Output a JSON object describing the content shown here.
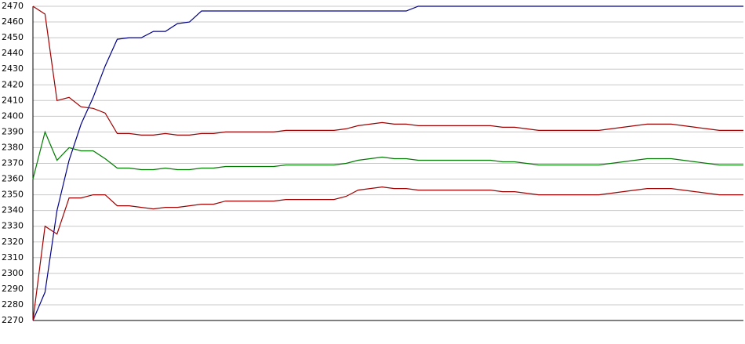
{
  "chart_data": {
    "type": "line",
    "categories": [
      null,
      null,
      null,
      null,
      null,
      null,
      null,
      null,
      null,
      null,
      null,
      null,
      null,
      null,
      null,
      null,
      null,
      null,
      null,
      null,
      null,
      null,
      null,
      null,
      null,
      null,
      null,
      null,
      null,
      null,
      null,
      null,
      null,
      null,
      null,
      null,
      null,
      null,
      null,
      null,
      null,
      null,
      null,
      null,
      null,
      null,
      null,
      null,
      null,
      null,
      null,
      null,
      null,
      null,
      null,
      null,
      null,
      null,
      null,
      null
    ],
    "series": [
      {
        "color": "#00008b",
        "values": [
          2270,
          2288,
          2340,
          2372,
          2395,
          2412,
          2432,
          2449,
          2450,
          2450,
          2454,
          2454,
          2459,
          2460,
          2467,
          2467,
          2467,
          2467,
          2467,
          2467,
          2467,
          2467,
          2467,
          2467,
          2467,
          2467,
          2467,
          2467,
          2467,
          2467,
          2467,
          2467,
          2470,
          2470,
          2470,
          2470,
          2470,
          2470,
          2470,
          2470,
          2470,
          2470,
          2470,
          2470,
          2470,
          2470,
          2470,
          2470,
          2470,
          2470,
          2470,
          2470,
          2470,
          2470,
          2470,
          2470,
          2470,
          2470,
          2470,
          2470
        ]
      },
      {
        "color": "#a00000",
        "values": [
          2470,
          2465,
          2410,
          2412,
          2406,
          2405,
          2402,
          2389,
          2389,
          2388,
          2388,
          2389,
          2388,
          2388,
          2389,
          2389,
          2390,
          2390,
          2390,
          2390,
          2390,
          2391,
          2391,
          2391,
          2391,
          2391,
          2392,
          2394,
          2395,
          2396,
          2395,
          2395,
          2394,
          2394,
          2394,
          2394,
          2394,
          2394,
          2394,
          2393,
          2393,
          2392,
          2391,
          2391,
          2391,
          2391,
          2391,
          2391,
          2392,
          2393,
          2394,
          2395,
          2395,
          2395,
          2394,
          2393,
          2392,
          2391,
          2391,
          2391
        ]
      },
      {
        "color": "#007a00",
        "values": [
          2360,
          2390,
          2372,
          2380,
          2378,
          2378,
          2373,
          2367,
          2367,
          2366,
          2366,
          2367,
          2366,
          2366,
          2367,
          2367,
          2368,
          2368,
          2368,
          2368,
          2368,
          2369,
          2369,
          2369,
          2369,
          2369,
          2370,
          2372,
          2373,
          2374,
          2373,
          2373,
          2372,
          2372,
          2372,
          2372,
          2372,
          2372,
          2372,
          2371,
          2371,
          2370,
          2369,
          2369,
          2369,
          2369,
          2369,
          2369,
          2370,
          2371,
          2372,
          2373,
          2373,
          2373,
          2372,
          2371,
          2370,
          2369,
          2369,
          2369
        ]
      },
      {
        "color": "#a00000",
        "values": [
          2270,
          2330,
          2325,
          2348,
          2348,
          2350,
          2350,
          2343,
          2343,
          2342,
          2341,
          2342,
          2342,
          2343,
          2344,
          2344,
          2346,
          2346,
          2346,
          2346,
          2346,
          2347,
          2347,
          2347,
          2347,
          2347,
          2349,
          2353,
          2354,
          2355,
          2354,
          2354,
          2353,
          2353,
          2353,
          2353,
          2353,
          2353,
          2353,
          2352,
          2352,
          2351,
          2350,
          2350,
          2350,
          2350,
          2350,
          2350,
          2351,
          2352,
          2353,
          2354,
          2354,
          2354,
          2353,
          2352,
          2351,
          2350,
          2350,
          2350
        ]
      }
    ],
    "ylim": [
      2270,
      2470
    ],
    "yticks": [
      2270,
      2280,
      2290,
      2300,
      2310,
      2320,
      2330,
      2340,
      2350,
      2360,
      2370,
      2380,
      2390,
      2400,
      2410,
      2420,
      2430,
      2440,
      2450,
      2460,
      2470
    ],
    "grid": true
  }
}
